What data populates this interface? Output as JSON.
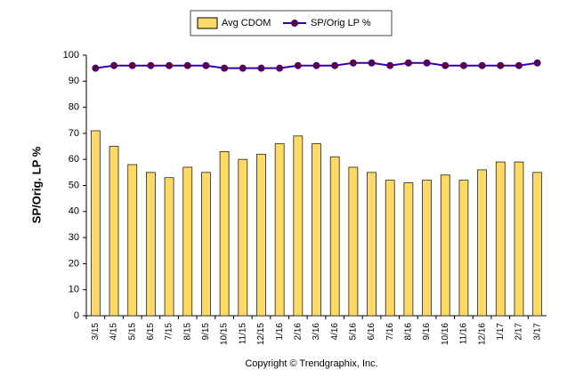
{
  "chart_data": {
    "type": "combo",
    "y_label": "SP/Orig. LP %",
    "footer": "Copyright © Trendgraphix, Inc.",
    "categories": [
      "3/15",
      "4/15",
      "5/15",
      "6/15",
      "7/15",
      "8/15",
      "9/15",
      "10/15",
      "11/15",
      "12/15",
      "1/16",
      "2/16",
      "3/16",
      "4/16",
      "5/16",
      "6/16",
      "7/16",
      "8/16",
      "9/16",
      "10/16",
      "11/16",
      "12/16",
      "1/17",
      "2/17",
      "3/17"
    ],
    "series": [
      {
        "name": "Avg CDOM",
        "kind": "bar",
        "color": "#ffd966",
        "values": [
          71,
          65,
          58,
          55,
          53,
          57,
          55,
          63,
          60,
          62,
          66,
          69,
          66,
          61,
          57,
          55,
          52,
          51,
          52,
          54,
          52,
          56,
          59,
          59,
          55
        ]
      },
      {
        "name": "SP/Orig LP %",
        "kind": "line",
        "color": "#3300aa",
        "marker_color": "#660033",
        "values": [
          95,
          96,
          96,
          96,
          96,
          96,
          96,
          95,
          95,
          95,
          95,
          96,
          96,
          96,
          97,
          97,
          96,
          97,
          97,
          96,
          96,
          96,
          96,
          96,
          97
        ]
      }
    ],
    "ylim": [
      0,
      100
    ],
    "yticks": [
      0,
      10,
      20,
      30,
      40,
      50,
      60,
      70,
      80,
      90,
      100
    ]
  }
}
